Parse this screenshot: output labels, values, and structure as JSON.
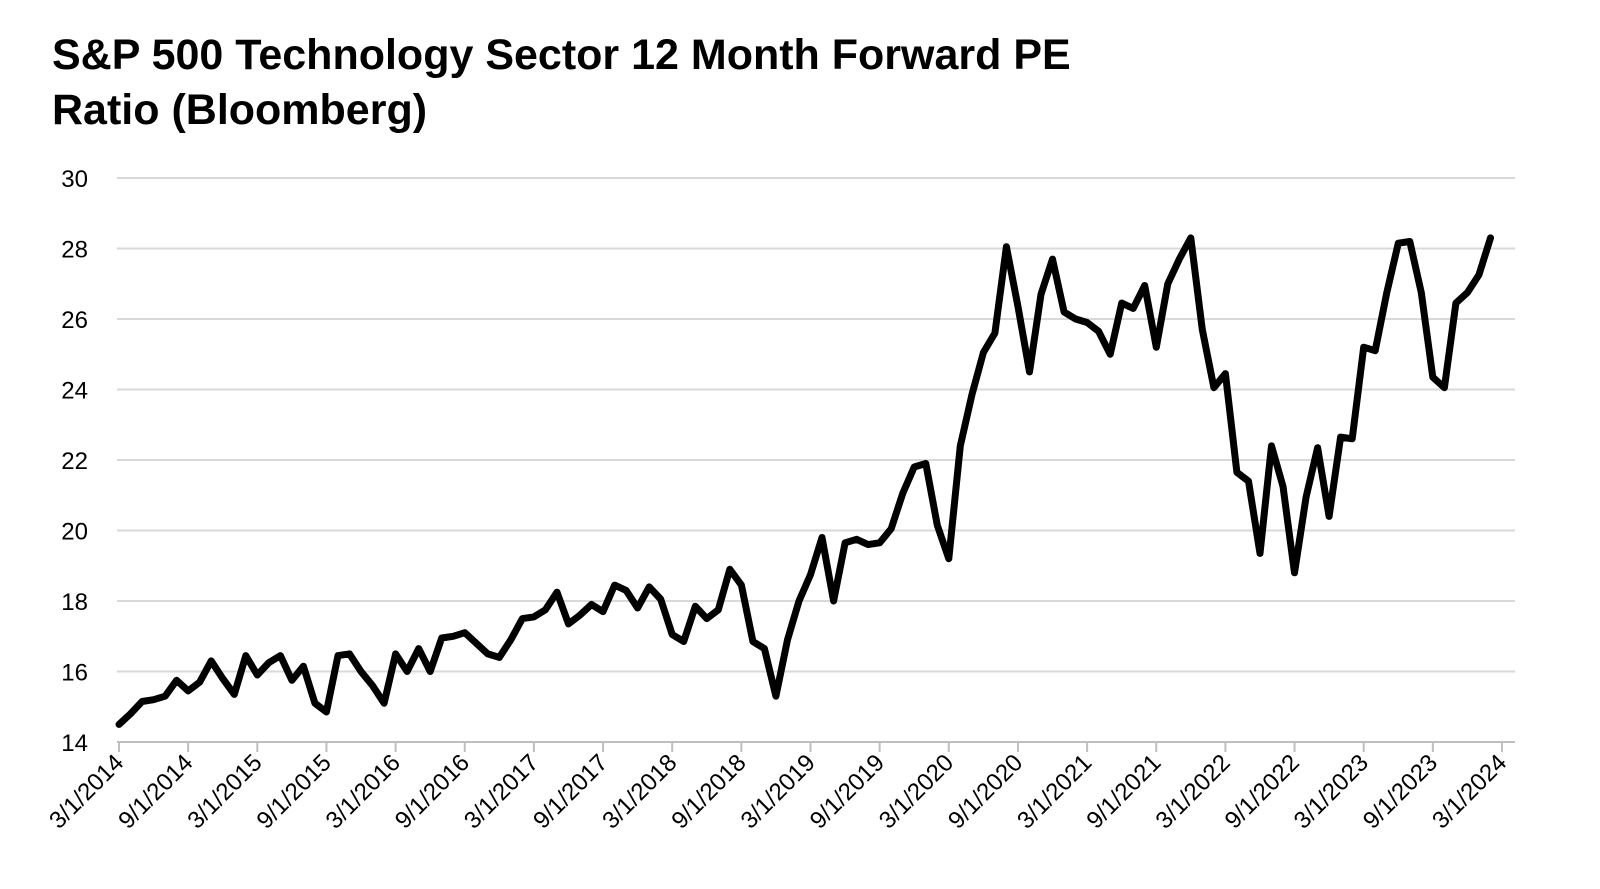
{
  "title_lines": [
    "S&P 500 Technology Sector 12 Month Forward PE",
    "Ratio (Bloomberg)"
  ],
  "chart_data": {
    "type": "line",
    "title": "S&P 500 Technology Sector 12 Month Forward PE Ratio (Bloomberg)",
    "xlabel": "",
    "ylabel": "",
    "ylim": [
      14,
      30
    ],
    "yticks": [
      14,
      16,
      18,
      20,
      22,
      24,
      26,
      28,
      30
    ],
    "xlim": [
      "3/1/2014",
      "3/1/2024"
    ],
    "xtick_labels": [
      "3/1/2014",
      "9/1/2014",
      "3/1/2015",
      "9/1/2015",
      "3/1/2016",
      "9/1/2016",
      "3/1/2017",
      "9/1/2017",
      "3/1/2018",
      "9/1/2018",
      "3/1/2019",
      "9/1/2019",
      "3/1/2020",
      "9/1/2020",
      "3/1/2021",
      "9/1/2021",
      "3/1/2022",
      "9/1/2022",
      "3/1/2023",
      "9/1/2023",
      "3/1/2024"
    ],
    "grid": true,
    "line_color": "#000000",
    "grid_color": "#d9d9d9",
    "series": [
      {
        "name": "Forward PE",
        "frequency": "monthly",
        "start": "3/1/2014",
        "values": [
          14.5,
          14.8,
          15.15,
          15.2,
          15.3,
          15.75,
          15.45,
          15.7,
          16.3,
          15.8,
          15.35,
          16.45,
          15.9,
          16.25,
          16.45,
          15.75,
          16.15,
          15.1,
          14.85,
          16.45,
          16.5,
          16.0,
          15.6,
          15.1,
          16.5,
          16.0,
          16.65,
          16.0,
          16.95,
          17.0,
          17.1,
          16.8,
          16.5,
          16.4,
          16.9,
          17.5,
          17.55,
          17.75,
          18.25,
          17.35,
          17.6,
          17.9,
          17.7,
          18.45,
          18.3,
          17.8,
          18.4,
          18.05,
          17.05,
          16.85,
          17.85,
          17.5,
          17.75,
          18.9,
          18.45,
          16.85,
          16.65,
          15.3,
          16.9,
          18.0,
          18.75,
          19.8,
          18.0,
          19.65,
          19.75,
          19.6,
          19.65,
          20.05,
          21.05,
          21.8,
          21.9,
          20.15,
          19.2,
          22.4,
          23.85,
          25.05,
          25.6,
          28.05,
          26.35,
          24.5,
          26.7,
          27.7,
          26.2,
          26.0,
          25.9,
          25.65,
          25.0,
          26.45,
          26.3,
          26.95,
          25.2,
          27.0,
          27.7,
          28.3,
          25.7,
          24.05,
          24.45,
          21.65,
          21.4,
          19.35,
          22.4,
          21.25,
          18.8,
          20.95,
          22.35,
          20.4,
          22.65,
          22.6,
          25.2,
          25.1,
          26.75,
          28.15,
          28.2,
          26.75,
          24.35,
          24.05,
          26.45,
          26.75,
          27.25,
          28.3
        ]
      }
    ]
  }
}
